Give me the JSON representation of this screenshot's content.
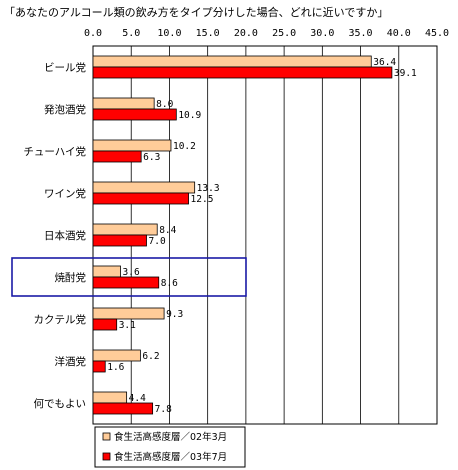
{
  "chart_data": {
    "type": "bar",
    "orientation": "horizontal",
    "title": "「あなたのアルコール類の飲み方をタイプ分けした場合、どれに近いですか」",
    "xlim": [
      0,
      45
    ],
    "x_ticks": [
      "0.0",
      "5.0",
      "10.0",
      "15.0",
      "20.0",
      "25.0",
      "30.0",
      "35.0",
      "40.0",
      "45.0"
    ],
    "grid": true,
    "legend_position": "bottom-left",
    "categories": [
      "ビール党",
      "発泡酒党",
      "チューハイ党",
      "ワイン党",
      "日本酒党",
      "焼酎党",
      "カクテル党",
      "洋酒党",
      "何でもよい"
    ],
    "highlighted_category": "焼酎党",
    "series": [
      {
        "name": "食生活高感度層／02年3月",
        "color": "#ffcc99",
        "values": [
          36.4,
          8.0,
          10.2,
          13.3,
          8.4,
          3.6,
          9.3,
          6.2,
          4.4
        ],
        "labels": [
          "36.4",
          "8.0",
          "10.2",
          "13.3",
          "8.4",
          "3.6",
          "9.3",
          "6.2",
          "4.4"
        ]
      },
      {
        "name": "食生活高感度層／03年7月",
        "color": "#ff0000",
        "values": [
          39.1,
          10.9,
          6.3,
          12.5,
          7.0,
          8.6,
          3.1,
          1.6,
          7.8
        ],
        "labels": [
          "39.1",
          "10.9",
          "6.3",
          "12.5",
          "7.0",
          "8.6",
          "3.1",
          "1.6",
          "7.8"
        ]
      }
    ]
  }
}
